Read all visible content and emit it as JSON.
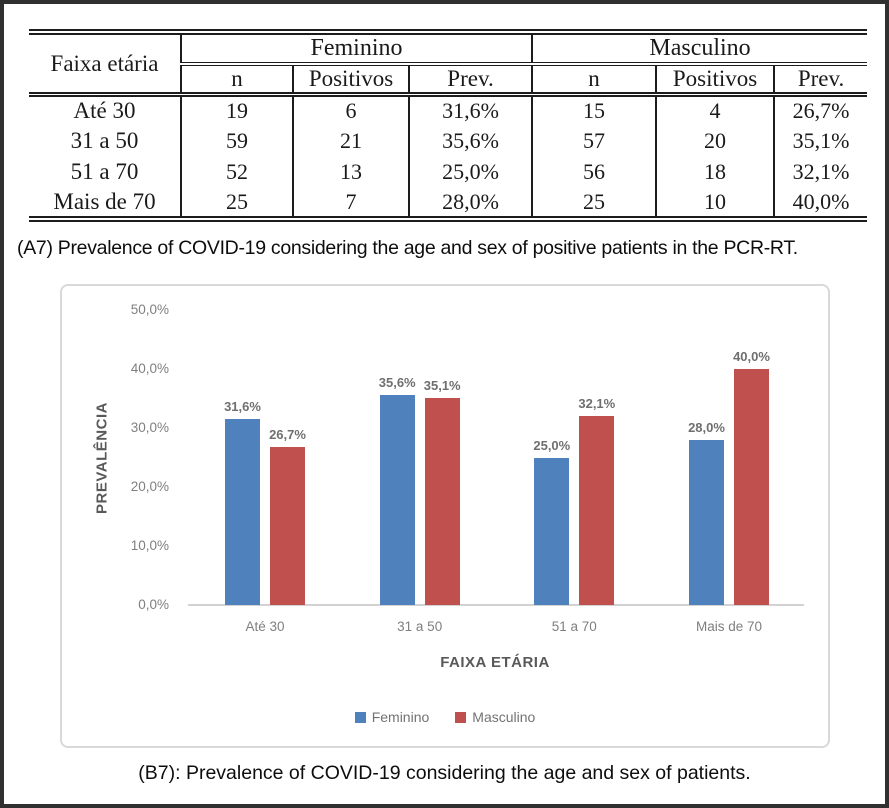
{
  "table": {
    "corner_header": "Faixa etária",
    "groups": [
      {
        "label": "Feminino"
      },
      {
        "label": "Masculino"
      }
    ],
    "sub_headers": [
      "n",
      "Positivos",
      "Prev."
    ],
    "rows": [
      {
        "label": "Até 30",
        "cells": [
          "19",
          "6",
          "31,6%",
          "15",
          "4",
          "26,7%"
        ]
      },
      {
        "label": "31 a 50",
        "cells": [
          "59",
          "21",
          "35,6%",
          "57",
          "20",
          "35,1%"
        ]
      },
      {
        "label": "51 a 70",
        "cells": [
          "52",
          "13",
          "25,0%",
          "56",
          "18",
          "32,1%"
        ]
      },
      {
        "label": "Mais de 70",
        "cells": [
          "25",
          "7",
          "28,0%",
          "25",
          "10",
          "40,0%"
        ]
      }
    ]
  },
  "caption_a": "(A7) Prevalence of COVID-19 considering the age and sex of positive patients in the PCR-RT.",
  "caption_b": "(B7): Prevalence of COVID-19 considering the age and sex of patients.",
  "chart_data": {
    "type": "bar",
    "title": "",
    "categories": [
      "Até 30",
      "31 a 50",
      "51 a 70",
      "Mais de 70"
    ],
    "series": [
      {
        "name": "Feminino",
        "color": "#4F81BD",
        "values": [
          31.6,
          35.6,
          25.0,
          28.0
        ],
        "labels": [
          "31,6%",
          "35,6%",
          "25,0%",
          "28,0%"
        ]
      },
      {
        "name": "Masculino",
        "color": "#C0504D",
        "values": [
          26.7,
          35.1,
          32.1,
          40.0
        ],
        "labels": [
          "26,7%",
          "35,1%",
          "32,1%",
          "40,0%"
        ]
      }
    ],
    "xlabel": "FAIXA ETÁRIA",
    "ylabel": "PREVALÊNCIA",
    "ylim": [
      0,
      50
    ],
    "yticks": [
      "50,0%",
      "40,0%",
      "30,0%",
      "20,0%",
      "10,0%",
      "0,0%"
    ],
    "ytick_values": [
      50,
      40,
      30,
      20,
      10,
      0
    ],
    "grid": false,
    "legend_position": "bottom"
  }
}
